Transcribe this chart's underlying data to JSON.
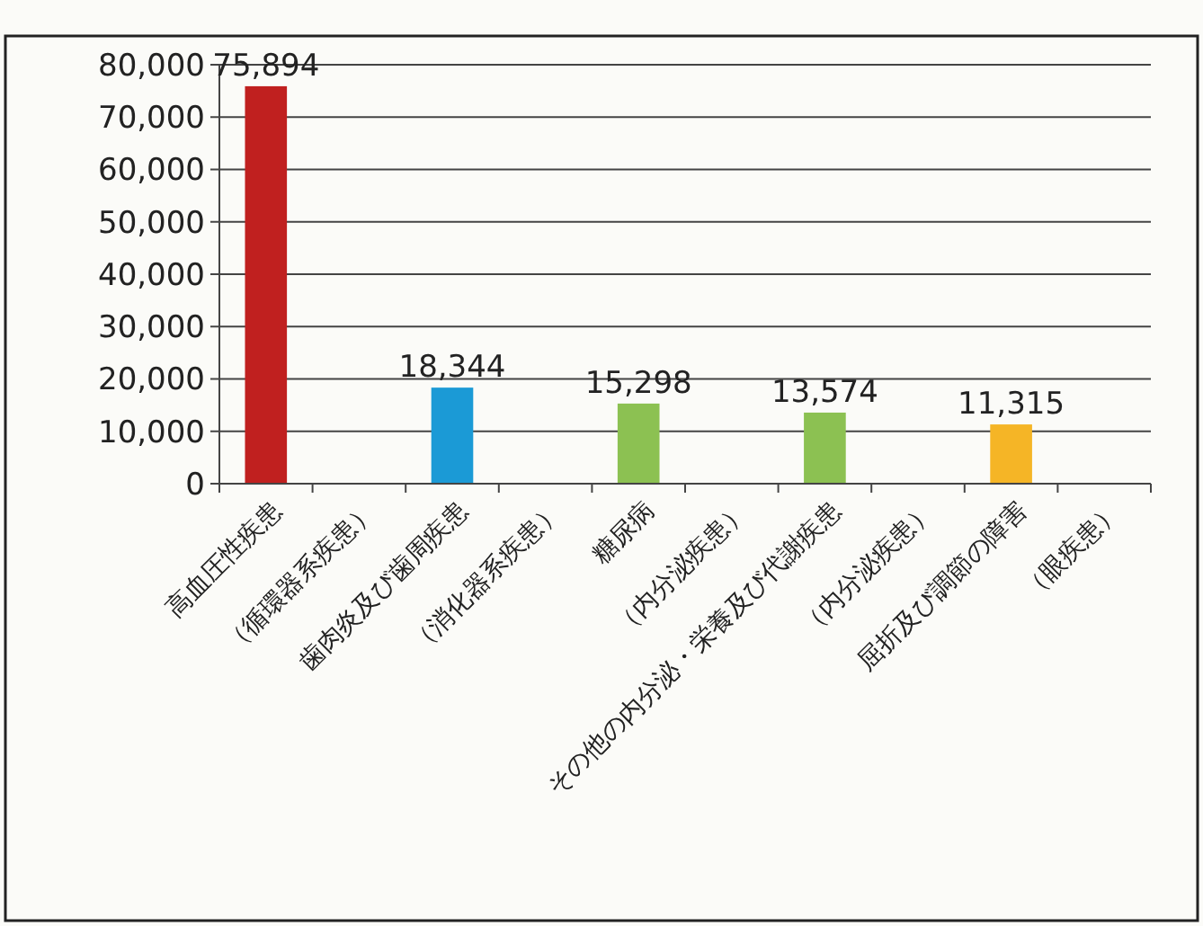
{
  "chart_data": {
    "type": "bar",
    "categories": [
      "高血圧性疾患",
      "（循環器系疾患）",
      "歯肉炎及び歯周疾患",
      "（消化器系疾患）",
      "糖尿病",
      "（内分泌疾患）",
      "その他の内分泌・栄養及び代謝疾患",
      "（内分泌疾患）",
      "屈折及び調節の障害",
      "（眼疾患）"
    ],
    "values": [
      75894,
      null,
      18344,
      null,
      15298,
      null,
      13574,
      null,
      11315,
      null
    ],
    "colors": [
      "#c0201f",
      null,
      "#1b9ad6",
      null,
      "#8cc152",
      null,
      "#8cc152",
      null,
      "#f5b526",
      null
    ],
    "value_labels": [
      "75,894",
      null,
      "18,344",
      null,
      "15,298",
      null,
      "13,574",
      null,
      "11,315",
      null
    ],
    "ylim": [
      0,
      80000
    ],
    "yticks": [
      {
        "value": 0,
        "label": "0"
      },
      {
        "value": 10000,
        "label": "10,000"
      },
      {
        "value": 20000,
        "label": "20,000"
      },
      {
        "value": 30000,
        "label": "30,000"
      },
      {
        "value": 40000,
        "label": "40,000"
      },
      {
        "value": 50000,
        "label": "50,000"
      },
      {
        "value": 60000,
        "label": "60,000"
      },
      {
        "value": 70000,
        "label": "70,000"
      },
      {
        "value": 80000,
        "label": "80,000"
      }
    ],
    "grid": "y"
  }
}
